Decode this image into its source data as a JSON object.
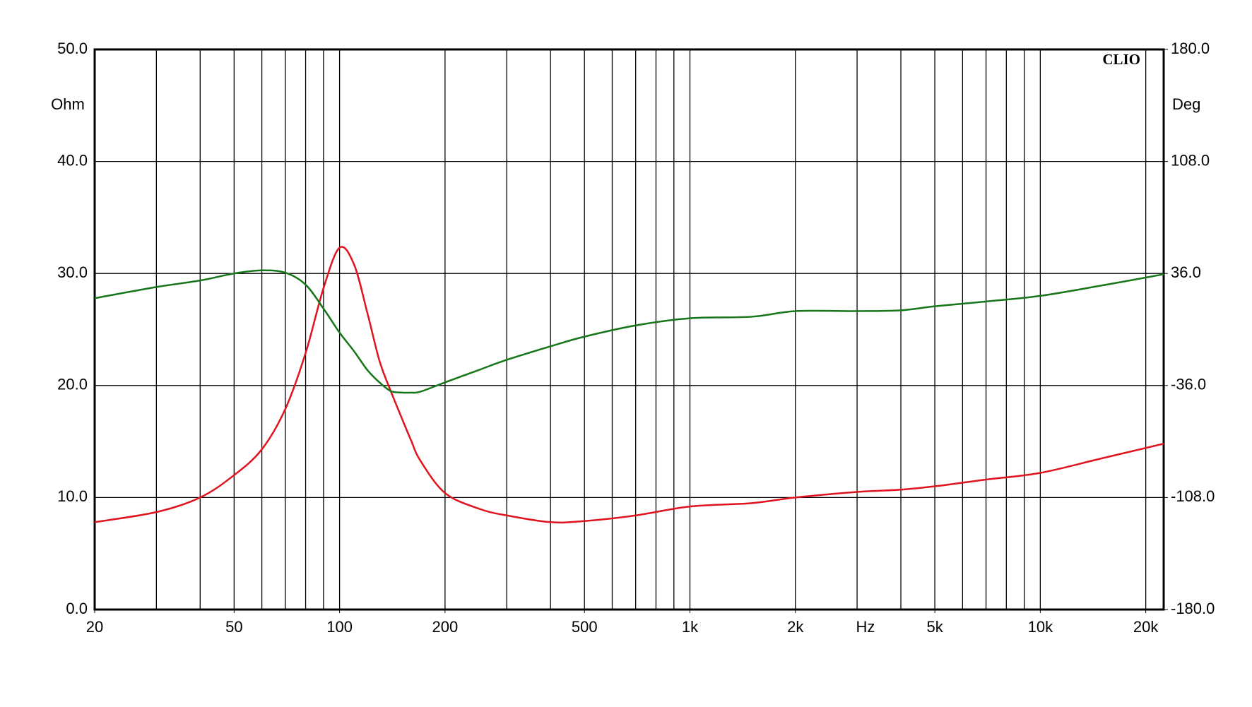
{
  "chart_data": {
    "type": "line",
    "watermark": "CLIO",
    "y_label": "Ohm",
    "y2_label": "Deg",
    "x_label": "Hz",
    "log_x": true,
    "grid": true,
    "xlim": [
      20,
      22500
    ],
    "xticks": [
      20,
      50,
      100,
      200,
      500,
      {
        "value": 1000,
        "label": "1k"
      },
      {
        "value": 2000,
        "label": "2k"
      },
      {
        "value": 5000,
        "label": "5k"
      },
      {
        "value": 10000,
        "label": "10k"
      },
      {
        "value": 20000,
        "label": "20k"
      }
    ],
    "xgrid": [
      20,
      30,
      40,
      50,
      60,
      70,
      80,
      90,
      100,
      200,
      300,
      400,
      500,
      600,
      700,
      800,
      900,
      1000,
      2000,
      3000,
      4000,
      5000,
      6000,
      7000,
      8000,
      9000,
      10000,
      20000
    ],
    "ylim": [
      0,
      50
    ],
    "yticks": [
      {
        "value": 0,
        "label": "0.0"
      },
      {
        "value": 10,
        "label": "10.0"
      },
      {
        "value": 20,
        "label": "20.0"
      },
      {
        "value": 30,
        "label": "30.0"
      },
      {
        "value": 40,
        "label": "40.0"
      },
      {
        "value": 50,
        "label": "50.0"
      }
    ],
    "y2lim": [
      -180,
      180
    ],
    "y2ticks": [
      {
        "value": -180,
        "label": "-180.0"
      },
      {
        "value": -108,
        "label": "-108.0"
      },
      {
        "value": -36,
        "label": "-36.0"
      },
      {
        "value": 36,
        "label": "36.0"
      },
      {
        "value": 108,
        "label": "108.0"
      },
      {
        "value": 180,
        "label": "180.0"
      }
    ],
    "x": [
      20,
      30,
      40,
      50,
      60,
      70,
      80,
      90,
      100,
      110,
      120,
      130,
      140,
      150,
      160,
      170,
      200,
      250,
      300,
      400,
      500,
      700,
      1000,
      1500,
      2000,
      3000,
      4000,
      5000,
      7000,
      10000,
      15000,
      22500
    ],
    "series": [
      {
        "color": "#e0141e",
        "values": [
          7.8,
          8.7,
          10.0,
          12.0,
          14.3,
          17.9,
          22.9,
          28.7,
          32.3,
          30.8,
          26.5,
          22.2,
          19.5,
          17.2,
          15.1,
          13.3,
          10.4,
          9.0,
          8.4,
          7.8,
          7.9,
          8.4,
          9.2,
          9.5,
          10.0,
          10.5,
          10.7,
          11.0,
          11.6,
          12.2,
          13.5,
          14.8
        ]
      },
      {
        "color": "#17761a",
        "axis": "y2",
        "values": [
          20.1,
          27.3,
          31.5,
          36,
          38,
          36.5,
          28.8,
          13.4,
          -2,
          -14,
          -26,
          -34,
          -39.6,
          -40.5,
          -40.6,
          -40,
          -34,
          -26,
          -19.5,
          -10.8,
          -4.6,
          2.6,
          7.2,
          8.2,
          11.8,
          11.8,
          12.3,
          14.9,
          18,
          21.6,
          28.3,
          35.5
        ]
      }
    ]
  }
}
